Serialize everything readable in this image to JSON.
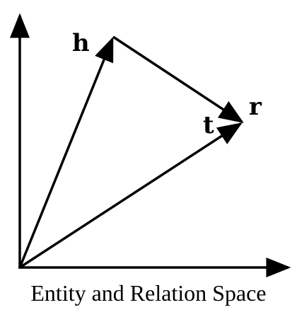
{
  "labels": {
    "head": "h",
    "tail": "t",
    "relation": "r"
  },
  "caption": "Entity and Relation Space",
  "colors": {
    "stroke": "#000000",
    "background": "#ffffff"
  }
}
